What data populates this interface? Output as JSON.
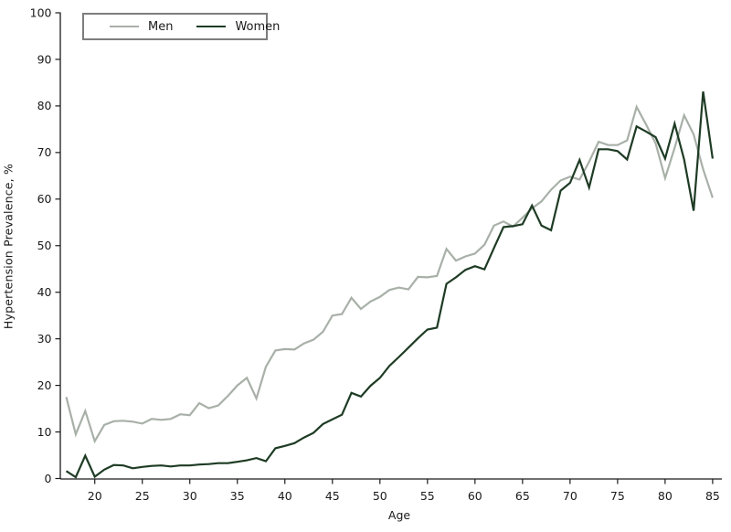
{
  "figure": {
    "background": "#ffffff",
    "text_color": "#1a1a1a",
    "axis_color": "#1a1a1a"
  },
  "chart_data": {
    "type": "line",
    "title": "",
    "xlabel": "Age",
    "ylabel": "Hypertension Prevalence, %",
    "xlim": [
      17,
      85
    ],
    "ylim": [
      0,
      100
    ],
    "xticks": [
      20,
      25,
      30,
      35,
      40,
      45,
      50,
      55,
      60,
      65,
      70,
      75,
      80,
      85
    ],
    "yticks": [
      0,
      10,
      20,
      30,
      40,
      50,
      60,
      70,
      80,
      90,
      100
    ],
    "grid": false,
    "legend_position": "top-left",
    "x": [
      17,
      18,
      19,
      20,
      21,
      22,
      23,
      24,
      25,
      26,
      27,
      28,
      29,
      30,
      31,
      32,
      33,
      34,
      35,
      36,
      37,
      38,
      39,
      40,
      41,
      42,
      43,
      44,
      45,
      46,
      47,
      48,
      49,
      50,
      51,
      52,
      53,
      54,
      55,
      56,
      57,
      58,
      59,
      60,
      61,
      62,
      63,
      64,
      65,
      66,
      67,
      68,
      69,
      70,
      71,
      72,
      73,
      74,
      75,
      76,
      77,
      78,
      79,
      80,
      81,
      82,
      83,
      84,
      85
    ],
    "series": [
      {
        "name": "Men",
        "color": "#a8b0a8",
        "values": [
          17.5,
          9.5,
          14.5,
          8,
          11.5,
          12.3,
          12.4,
          12.2,
          11.8,
          12.8,
          12.6,
          12.8,
          13.8,
          13.6,
          16.2,
          15.1,
          15.7,
          17.7,
          20,
          21.6,
          17.2,
          24,
          27.5,
          27.8,
          27.7,
          29,
          29.8,
          31.5,
          35,
          35.3,
          38.8,
          36.4,
          38,
          39,
          40.5,
          41,
          40.6,
          43.3,
          43.2,
          43.5,
          49.3,
          46.8,
          47.7,
          48.3,
          50.2,
          54.3,
          55.2,
          54.1,
          56,
          58,
          59.5,
          62,
          64,
          64.8,
          64.2,
          68,
          72.3,
          71.6,
          71.6,
          72.6,
          79.8,
          76,
          72,
          64.5,
          71,
          78,
          73.9,
          66.4,
          60.3
        ]
      },
      {
        "name": "Women",
        "color": "#1e3b24",
        "values": [
          1.6,
          0.3,
          4.9,
          0.4,
          1.9,
          2.9,
          2.8,
          2.2,
          2.5,
          2.7,
          2.8,
          2.6,
          2.8,
          2.8,
          3.0,
          3.1,
          3.3,
          3.3,
          3.6,
          3.9,
          4.4,
          3.7,
          6.5,
          7,
          7.6,
          8.8,
          9.8,
          11.7,
          12.7,
          13.7,
          18.4,
          17.6,
          19.9,
          21.6,
          24.2,
          26.1,
          28.1,
          30.1,
          32,
          32.4,
          41.8,
          43.2,
          44.8,
          45.6,
          44.9,
          49.5,
          54,
          54.2,
          54.6,
          58.6,
          54.3,
          53.3,
          61.8,
          63.5,
          68.4,
          62.5,
          70.7,
          70.7,
          70.3,
          68.5,
          75.6,
          74.5,
          73.3,
          68.7,
          76.2,
          68.5,
          57.5,
          83.1,
          68.7
        ]
      }
    ]
  }
}
